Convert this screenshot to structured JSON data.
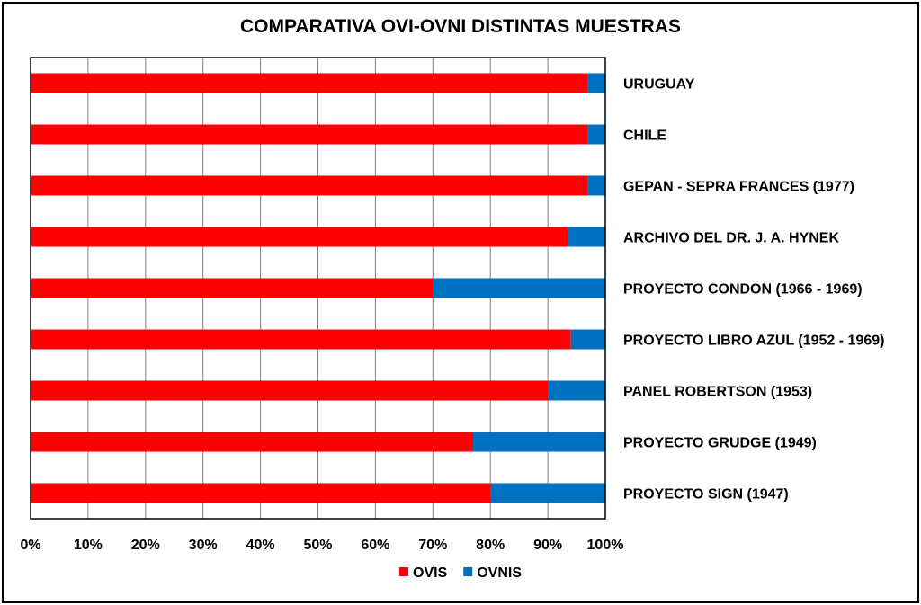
{
  "chart_data": {
    "type": "bar",
    "orientation": "horizontal",
    "stacked": "percent",
    "title": "COMPARATIVA OVI-OVNI DISTINTAS MUESTRAS",
    "categories": [
      "URUGUAY",
      "CHILE",
      "GEPAN - SEPRA FRANCES (1977)",
      "ARCHIVO DEL DR. J. A. HYNEK",
      "PROYECTO CONDON (1966 - 1969)",
      "PROYECTO LIBRO AZUL (1952 - 1969)",
      "PANEL ROBERTSON (1953)",
      "PROYECTO GRUDGE (1949)",
      "PROYECTO SIGN (1947)"
    ],
    "series": [
      {
        "name": "OVIS",
        "color": "#ff0000",
        "values": [
          97,
          97,
          97,
          93.5,
          70,
          94,
          90,
          77,
          80
        ]
      },
      {
        "name": "OVNIS",
        "color": "#0070c0",
        "values": [
          3,
          3,
          3,
          6.5,
          30,
          6,
          10,
          23,
          20
        ]
      }
    ],
    "xlim": [
      0,
      100
    ],
    "xticks": [
      "0%",
      "10%",
      "20%",
      "30%",
      "40%",
      "50%",
      "60%",
      "70%",
      "80%",
      "90%",
      "100%"
    ],
    "grid": true,
    "legend": "bottom"
  }
}
